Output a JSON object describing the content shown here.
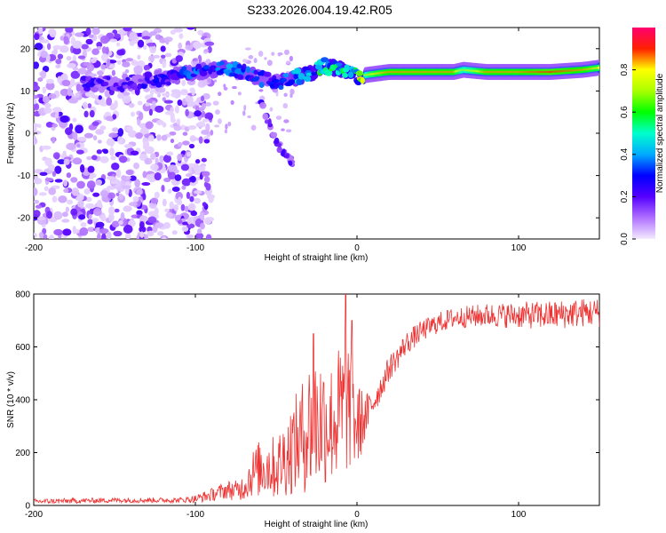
{
  "title": "S233.2026.004.19.42.R05",
  "chart_data": [
    {
      "type": "heatmap",
      "title": "S233.2026.004.19.42.R05",
      "xlabel": "Height of straight line (km)",
      "ylabel": "Frequency (Hz)",
      "xlim": [
        -200,
        150
      ],
      "ylim": [
        -25,
        25
      ],
      "xticks": [
        -200,
        -100,
        0,
        100
      ],
      "yticks": [
        -20,
        -10,
        0,
        10,
        20
      ],
      "colorbar": {
        "label": "Normalized spectral amplitude",
        "range": [
          0.0,
          1.0
        ],
        "ticks": [
          0.0,
          0.2,
          0.4,
          0.6,
          0.8
        ],
        "colors": [
          "#f0e8ff",
          "#7a00ff",
          "#0000ff",
          "#00ffff",
          "#00ff00",
          "#ffff00",
          "#ff0000",
          "#ff0066"
        ]
      },
      "ridge": {
        "description": "strong carrier line",
        "x": [
          -170,
          -140,
          -120,
          -100,
          -90,
          -80,
          -70,
          -60,
          -50,
          -40,
          -30,
          -20,
          -10,
          0,
          10,
          20,
          40,
          60,
          66,
          80,
          100,
          120,
          140,
          150
        ],
        "freq": [
          11.5,
          12,
          13,
          14.5,
          15,
          15.5,
          14.5,
          13,
          12,
          13,
          14,
          16,
          15,
          13.5,
          14,
          14.5,
          14.5,
          14.5,
          15,
          14.5,
          14.5,
          14.5,
          15,
          15.5
        ],
        "amplitude": [
          0.2,
          0.2,
          0.25,
          0.3,
          0.3,
          0.35,
          0.3,
          0.3,
          0.25,
          0.35,
          0.45,
          0.5,
          0.45,
          0.6,
          0.8,
          0.85,
          0.85,
          0.85,
          0.7,
          0.85,
          0.85,
          0.9,
          0.85,
          0.8
        ]
      },
      "noise_region": {
        "x_range": [
          -200,
          -100
        ],
        "freq_range": [
          -25,
          25
        ],
        "amplitude": 0.1
      },
      "branch": {
        "x": [
          -60,
          -55,
          -50,
          -45,
          -40
        ],
        "freq": [
          8,
          3,
          -2,
          -5,
          -7
        ],
        "amplitude": 0.2
      }
    },
    {
      "type": "line",
      "xlabel": "Height of straight line (km)",
      "ylabel": "SNR (10 * v/v)",
      "xlim": [
        -200,
        150
      ],
      "ylim": [
        0,
        800
      ],
      "xticks": [
        -200,
        -100,
        0,
        100
      ],
      "yticks": [
        0,
        200,
        400,
        600,
        800
      ],
      "color": "#ee3333",
      "series": [
        {
          "name": "SNR",
          "x": [
            -200,
            -150,
            -110,
            -100,
            -90,
            -80,
            -75,
            -70,
            -65,
            -60,
            -55,
            -50,
            -45,
            -40,
            -35,
            -30,
            -25,
            -20,
            -15,
            -10,
            -5,
            0,
            5,
            10,
            15,
            20,
            25,
            30,
            40,
            50,
            60,
            80,
            100,
            120,
            140,
            150
          ],
          "mean": [
            15,
            20,
            20,
            25,
            40,
            60,
            55,
            70,
            120,
            140,
            150,
            140,
            180,
            220,
            250,
            300,
            320,
            320,
            310,
            350,
            380,
            300,
            330,
            390,
            450,
            520,
            560,
            610,
            660,
            690,
            710,
            720,
            720,
            720,
            730,
            730
          ],
          "spread": [
            10,
            10,
            10,
            15,
            25,
            35,
            40,
            50,
            90,
            110,
            120,
            120,
            150,
            180,
            200,
            260,
            280,
            250,
            230,
            280,
            250,
            180,
            90,
            60,
            50,
            50,
            45,
            45,
            40,
            40,
            40,
            45,
            50,
            55,
            55,
            55
          ],
          "spikes": [
            {
              "x": -27,
              "y": 650
            },
            {
              "x": -7,
              "y": 800
            },
            {
              "x": -3,
              "y": 700
            }
          ]
        }
      ]
    }
  ]
}
